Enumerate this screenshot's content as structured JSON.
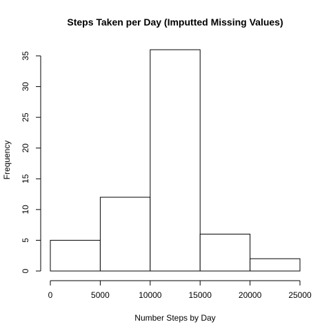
{
  "chart_data": {
    "type": "bar",
    "title": "Steps Taken per Day (Imputted Missing Values)",
    "xlabel": "Number Steps by Day",
    "ylabel": "Frequency",
    "bins": [
      {
        "from": 0,
        "to": 5000,
        "count": 5
      },
      {
        "from": 5000,
        "to": 10000,
        "count": 12
      },
      {
        "from": 10000,
        "to": 15000,
        "count": 36
      },
      {
        "from": 15000,
        "to": 20000,
        "count": 6
      },
      {
        "from": 20000,
        "to": 25000,
        "count": 2
      }
    ],
    "xlim": [
      0,
      25000
    ],
    "ylim": [
      0,
      35
    ],
    "x_ticks": [
      0,
      5000,
      10000,
      15000,
      20000,
      25000
    ],
    "y_ticks": [
      0,
      5,
      10,
      15,
      20,
      25,
      30,
      35
    ],
    "grid": false,
    "legend": "none"
  }
}
